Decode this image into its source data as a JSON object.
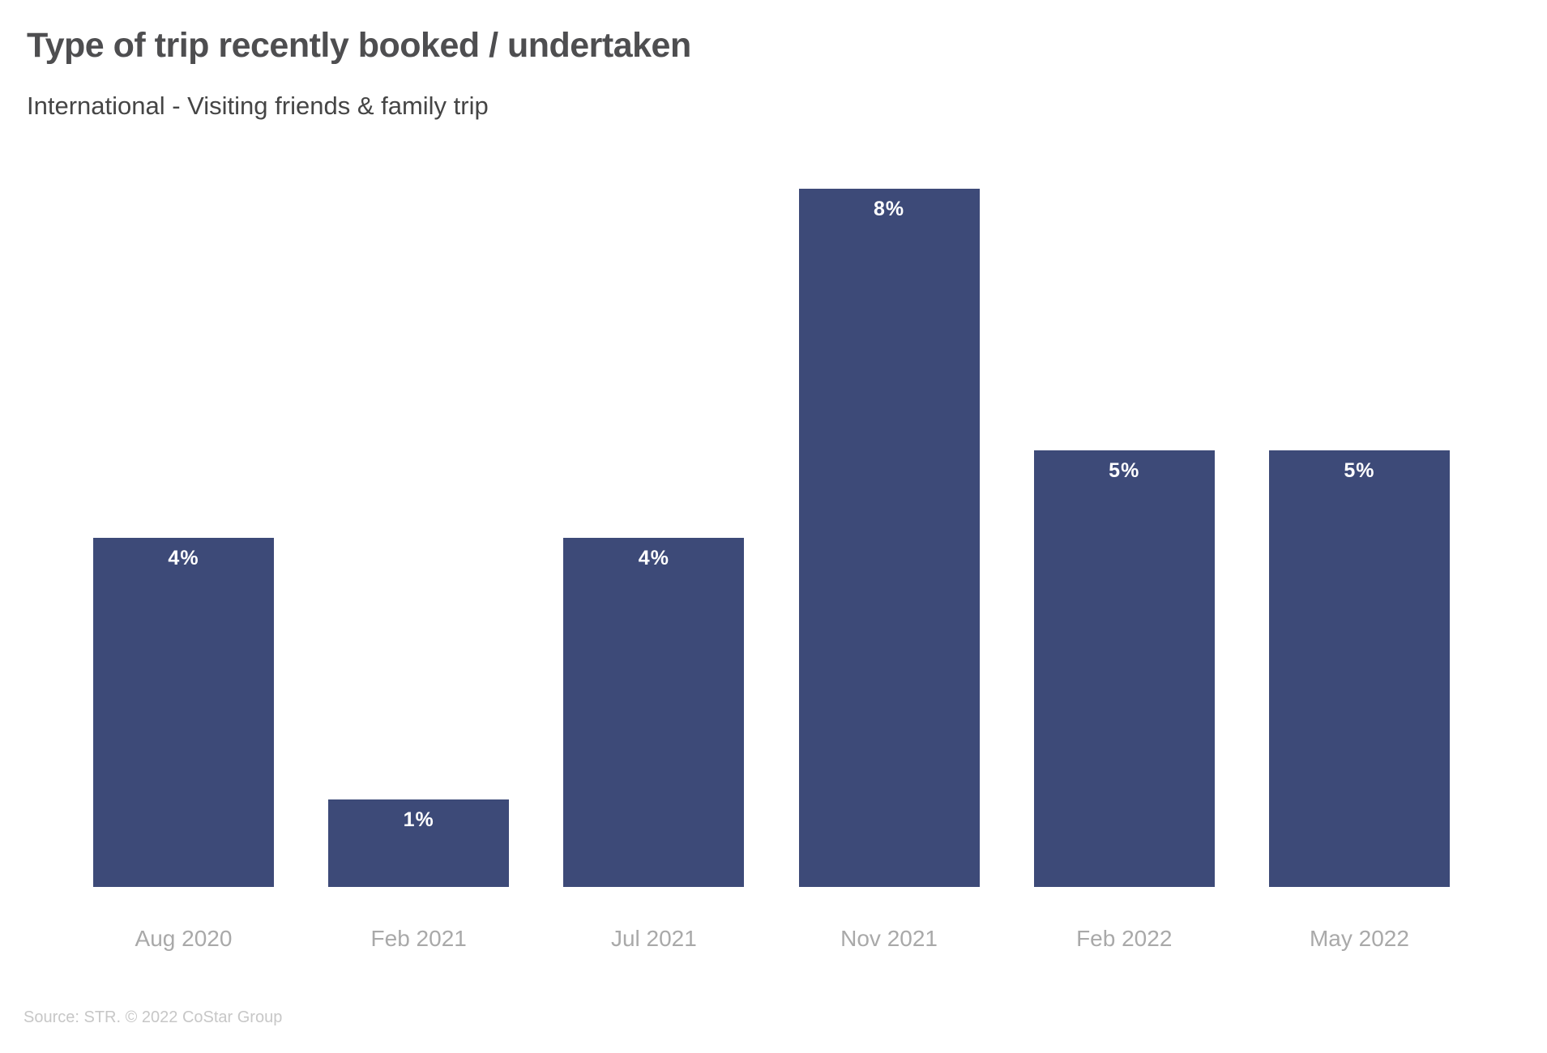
{
  "header": {
    "title": "Type of trip recently booked / undertaken",
    "subtitle": "International - Visiting friends & family trip"
  },
  "footer": {
    "source": "Source: STR. © 2022 CoStar Group"
  },
  "colors": {
    "background": "#ffffff",
    "bar": "#3d4a78",
    "value_label": "#ffffff",
    "title": "#4e4e50",
    "subtitle": "#454545",
    "axis_label": "#a9a9a9",
    "source": "#c7c7c7"
  },
  "chart_data": {
    "type": "bar",
    "title": "Type of trip recently booked / undertaken",
    "subtitle": "International - Visiting friends & family trip",
    "categories": [
      "Aug 2020",
      "Feb 2021",
      "Jul 2021",
      "Nov 2021",
      "Feb 2022",
      "May 2022"
    ],
    "values": [
      4,
      1,
      4,
      8,
      5,
      5
    ],
    "value_labels": [
      "4%",
      "1%",
      "4%",
      "8%",
      "5%",
      "5%"
    ],
    "unit": "%",
    "xlabel": "",
    "ylabel": "",
    "ylim": [
      0,
      8
    ],
    "grid": false,
    "legend": false,
    "axes_visible": false,
    "data_labels": "inside-top",
    "source": "Source: STR. © 2022 CoStar Group"
  }
}
